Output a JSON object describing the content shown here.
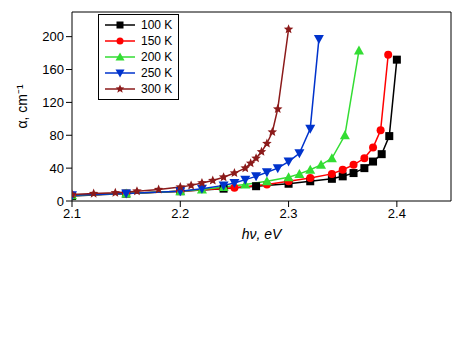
{
  "chart_data": {
    "type": "line",
    "x_label": "hν, eV",
    "y_label": "α, cm⁻¹",
    "xlim": [
      2.1,
      2.45
    ],
    "ylim": [
      0,
      230
    ],
    "xticks": [
      2.1,
      2.2,
      2.3,
      2.4
    ],
    "yticks": [
      0,
      40,
      80,
      120,
      160,
      200
    ],
    "grid": false,
    "legend": "upper left",
    "series": [
      {
        "name": "100 K",
        "color": "#000000",
        "marker": "square",
        "x": [
          2.1,
          2.15,
          2.2,
          2.24,
          2.27,
          2.3,
          2.32,
          2.34,
          2.35,
          2.36,
          2.37,
          2.378,
          2.386,
          2.393,
          2.4
        ],
        "values": [
          6,
          9,
          12,
          15,
          18,
          21,
          24,
          27,
          30,
          34,
          40,
          48,
          57,
          79,
          172
        ]
      },
      {
        "name": "150 K",
        "color": "#ff0000",
        "marker": "circle",
        "x": [
          2.1,
          2.15,
          2.2,
          2.25,
          2.28,
          2.3,
          2.32,
          2.34,
          2.35,
          2.36,
          2.37,
          2.378,
          2.385,
          2.392
        ],
        "values": [
          7,
          9,
          12,
          16,
          20,
          24,
          28,
          33,
          38,
          44,
          52,
          65,
          86,
          178
        ]
      },
      {
        "name": "200 K",
        "color": "#33dd33",
        "marker": "triangle-up",
        "x": [
          2.1,
          2.15,
          2.2,
          2.22,
          2.24,
          2.26,
          2.28,
          2.3,
          2.31,
          2.32,
          2.33,
          2.34,
          2.352,
          2.365
        ],
        "values": [
          7,
          9,
          12,
          14,
          17,
          20,
          24,
          29,
          33,
          38,
          44,
          52,
          80,
          183
        ]
      },
      {
        "name": "250 K",
        "color": "#0033cc",
        "marker": "triangle-down",
        "x": [
          2.1,
          2.15,
          2.2,
          2.22,
          2.24,
          2.25,
          2.26,
          2.27,
          2.28,
          2.29,
          2.3,
          2.31,
          2.32,
          2.328
        ],
        "values": [
          7,
          9,
          12,
          15,
          19,
          22,
          26,
          30,
          35,
          40,
          48,
          58,
          88,
          197
        ]
      },
      {
        "name": "300 K",
        "color": "#8b1a1a",
        "marker": "star",
        "x": [
          2.1,
          2.12,
          2.14,
          2.16,
          2.18,
          2.2,
          2.21,
          2.22,
          2.23,
          2.24,
          2.25,
          2.26,
          2.265,
          2.27,
          2.275,
          2.28,
          2.285,
          2.29,
          2.3
        ],
        "values": [
          8,
          9,
          10,
          12,
          14,
          17,
          19,
          22,
          25,
          29,
          34,
          40,
          46,
          52,
          60,
          70,
          84,
          112,
          209
        ]
      }
    ]
  }
}
